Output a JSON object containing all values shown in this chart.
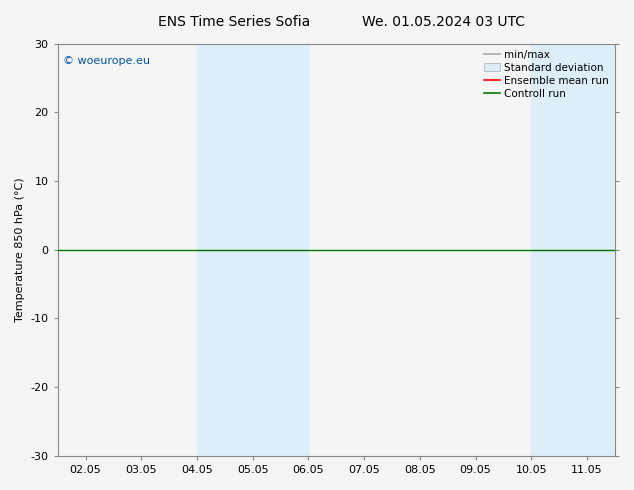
{
  "title_left": "ENS Time Series Sofia",
  "title_right": "We. 01.05.2024 03 UTC",
  "ylabel": "Temperature 850 hPa (°C)",
  "ylim": [
    -30,
    30
  ],
  "yticks": [
    -30,
    -20,
    -10,
    0,
    10,
    20,
    30
  ],
  "x_labels": [
    "02.05",
    "03.05",
    "04.05",
    "05.05",
    "06.05",
    "07.05",
    "08.05",
    "09.05",
    "10.05",
    "11.05"
  ],
  "x_positions": [
    0,
    1,
    2,
    3,
    4,
    5,
    6,
    7,
    8,
    9
  ],
  "xlim": [
    -0.5,
    9.5
  ],
  "watermark": "© woeurope.eu",
  "legend_entries": [
    "min/max",
    "Standard deviation",
    "Ensemble mean run",
    "Controll run"
  ],
  "shaded_bands": [
    {
      "x_start": 2.0,
      "x_end": 3.0,
      "color": "#ddeef8"
    },
    {
      "x_start": 3.0,
      "x_end": 4.0,
      "color": "#ddeef8"
    },
    {
      "x_start": 8.0,
      "x_end": 9.0,
      "color": "#ddeef8"
    },
    {
      "x_start": 9.0,
      "x_end": 9.5,
      "color": "#ddeef8"
    }
  ],
  "bg_color": "#f5f5f5",
  "border_color": "#888888",
  "zero_line_color": "#007700",
  "watermark_color": "#0055aa",
  "title_fontsize": 10,
  "axis_fontsize": 8,
  "legend_fontsize": 7.5
}
